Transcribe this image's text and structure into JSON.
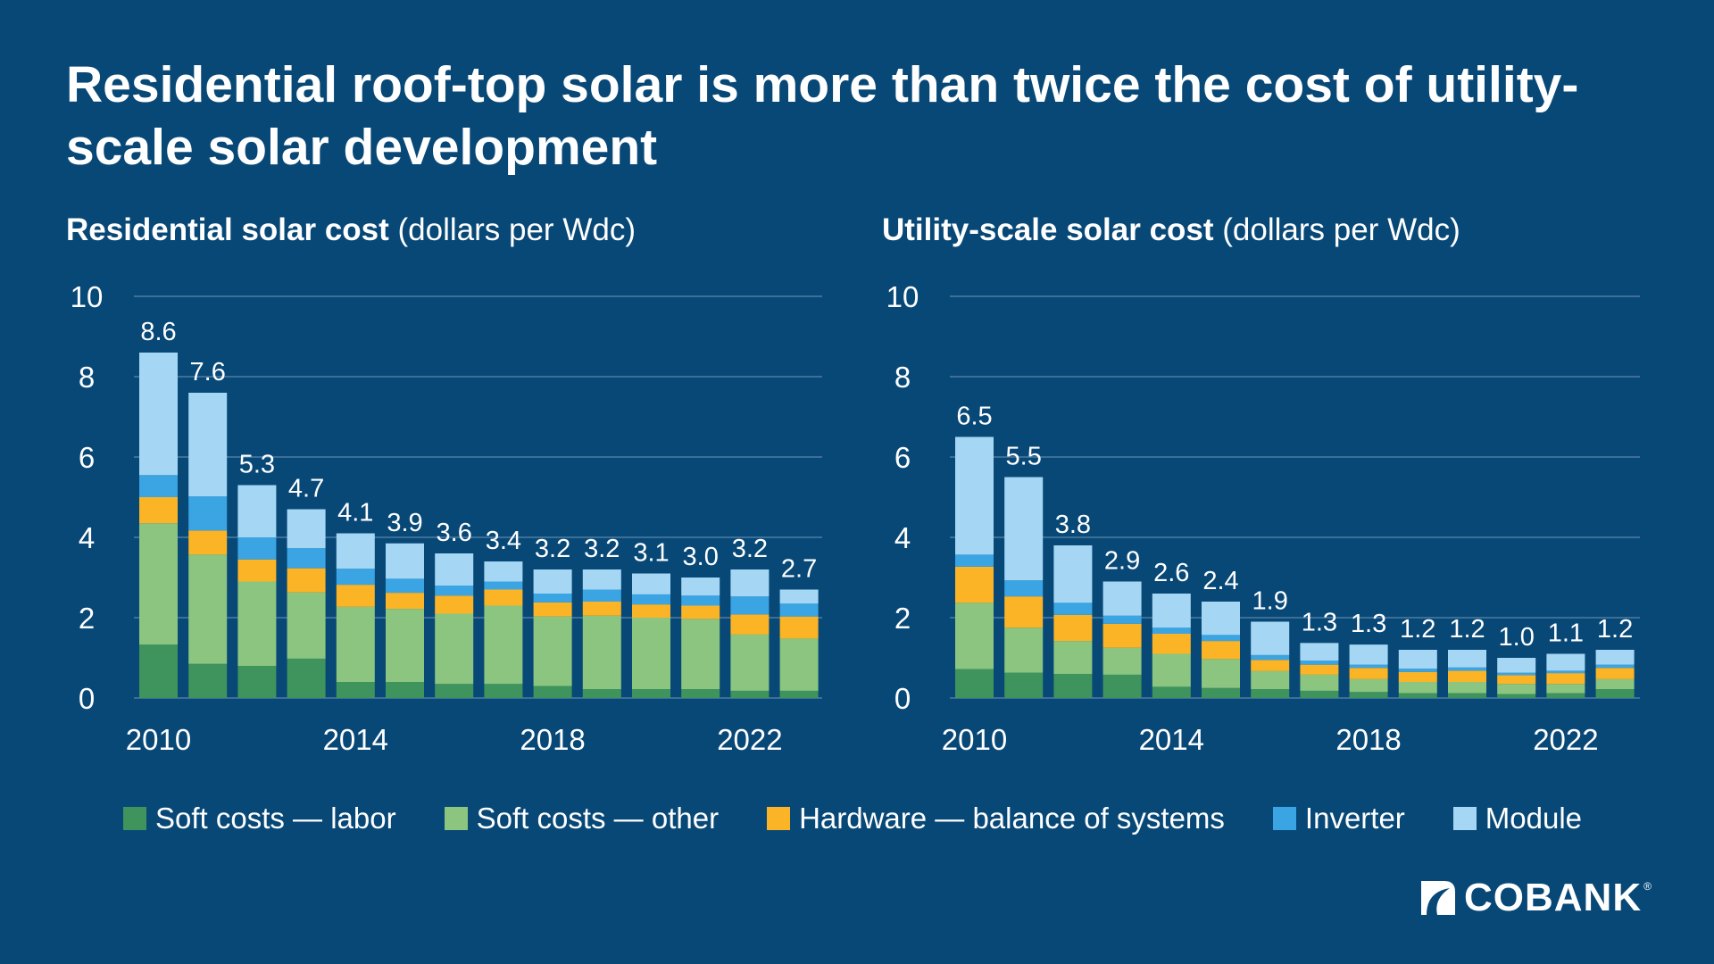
{
  "title": "Residential roof-top solar is more than twice the cost of utility-scale solar development",
  "legend": [
    {
      "label": "Soft costs — labor",
      "color": "#3f935c"
    },
    {
      "label": "Soft costs — other",
      "color": "#8bc57f"
    },
    {
      "label": "Hardware — balance of systems",
      "color": "#fbb426"
    },
    {
      "label": "Inverter",
      "color": "#3ba4e3"
    },
    {
      "label": "Module",
      "color": "#a5d7f5"
    }
  ],
  "logo": {
    "text": "COBANK",
    "reg": "®"
  },
  "chart_data": [
    {
      "type": "bar",
      "stacked": true,
      "title_bold": "Residential solar cost",
      "title_rest": " (dollars per Wdc)",
      "ylabel": "dollars per Wdc",
      "ylim": [
        0,
        10
      ],
      "yticks": [
        0,
        2,
        4,
        6,
        8,
        10
      ],
      "grid": true,
      "categories": [
        2010,
        2011,
        2012,
        2013,
        2014,
        2015,
        2016,
        2017,
        2018,
        2019,
        2020,
        2021,
        2022,
        2023
      ],
      "xtick_labels": [
        "2010",
        "",
        "",
        "",
        "2014",
        "",
        "",
        "",
        "2018",
        "",
        "",
        "",
        "2022",
        ""
      ],
      "totals": [
        "8.6",
        "7.6",
        "5.3",
        "4.7",
        "4.1",
        "3.9",
        "3.6",
        "3.4",
        "3.2",
        "3.2",
        "3.1",
        "3.0",
        "3.2",
        "2.7"
      ],
      "series": [
        {
          "name": "Soft costs — labor",
          "values": [
            1.33,
            0.85,
            0.8,
            0.98,
            0.4,
            0.4,
            0.35,
            0.35,
            0.3,
            0.22,
            0.22,
            0.22,
            0.18,
            0.18
          ]
        },
        {
          "name": "Soft costs — other",
          "values": [
            3.02,
            2.72,
            2.1,
            1.65,
            1.87,
            1.82,
            1.75,
            1.95,
            1.73,
            1.83,
            1.78,
            1.75,
            1.4,
            1.3
          ]
        },
        {
          "name": "Hardware — balance of systems",
          "values": [
            0.65,
            0.6,
            0.55,
            0.6,
            0.55,
            0.4,
            0.45,
            0.4,
            0.35,
            0.35,
            0.33,
            0.33,
            0.5,
            0.55
          ]
        },
        {
          "name": "Inverter",
          "values": [
            0.55,
            0.85,
            0.55,
            0.5,
            0.4,
            0.35,
            0.25,
            0.2,
            0.22,
            0.3,
            0.25,
            0.25,
            0.45,
            0.32
          ]
        },
        {
          "name": "Module",
          "values": [
            3.05,
            2.58,
            1.3,
            0.97,
            0.88,
            0.88,
            0.8,
            0.5,
            0.6,
            0.5,
            0.52,
            0.45,
            0.67,
            0.35
          ]
        }
      ]
    },
    {
      "type": "bar",
      "stacked": true,
      "title_bold": "Utility-scale solar cost",
      "title_rest": " (dollars per Wdc)",
      "ylabel": "dollars per Wdc",
      "ylim": [
        0,
        10
      ],
      "yticks": [
        0,
        2,
        4,
        6,
        8,
        10
      ],
      "grid": true,
      "categories": [
        2010,
        2011,
        2012,
        2013,
        2014,
        2015,
        2016,
        2017,
        2018,
        2019,
        2020,
        2021,
        2022,
        2023
      ],
      "xtick_labels": [
        "2010",
        "",
        "",
        "",
        "2014",
        "",
        "",
        "",
        "2018",
        "",
        "",
        "",
        "2022",
        ""
      ],
      "totals": [
        "6.5",
        "5.5",
        "3.8",
        "2.9",
        "2.6",
        "2.4",
        "1.9",
        "1.3",
        "1.3",
        "1.2",
        "1.2",
        "1.0",
        "1.1",
        "1.2"
      ],
      "series": [
        {
          "name": "Soft costs — labor",
          "values": [
            0.72,
            0.63,
            0.6,
            0.58,
            0.28,
            0.25,
            0.22,
            0.18,
            0.15,
            0.12,
            0.12,
            0.1,
            0.12,
            0.22
          ]
        },
        {
          "name": "Soft costs — other",
          "values": [
            1.65,
            1.12,
            0.82,
            0.67,
            0.82,
            0.72,
            0.45,
            0.4,
            0.32,
            0.28,
            0.28,
            0.25,
            0.23,
            0.25
          ]
        },
        {
          "name": "Hardware — balance of systems",
          "values": [
            0.9,
            0.78,
            0.65,
            0.6,
            0.5,
            0.45,
            0.28,
            0.25,
            0.28,
            0.25,
            0.28,
            0.22,
            0.27,
            0.28
          ]
        },
        {
          "name": "Inverter",
          "values": [
            0.3,
            0.4,
            0.3,
            0.2,
            0.15,
            0.15,
            0.12,
            0.1,
            0.08,
            0.08,
            0.08,
            0.06,
            0.06,
            0.08
          ]
        },
        {
          "name": "Module",
          "values": [
            2.93,
            2.57,
            1.43,
            0.85,
            0.85,
            0.83,
            0.83,
            0.44,
            0.5,
            0.47,
            0.44,
            0.37,
            0.42,
            0.37
          ]
        }
      ]
    }
  ]
}
